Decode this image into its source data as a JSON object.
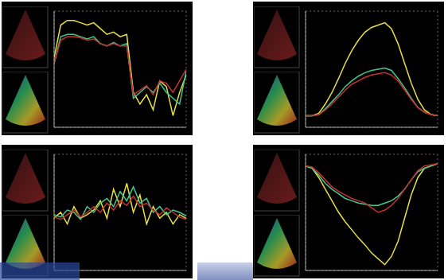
{
  "chart_data": [
    {
      "type": "line",
      "x": [
        0,
        1,
        2,
        3,
        4,
        5,
        6,
        7,
        8,
        9,
        10,
        11,
        12,
        13,
        14,
        15,
        16,
        17,
        18,
        19,
        20
      ],
      "xlim": [
        0,
        20
      ],
      "xticks": [
        0,
        4,
        8,
        12,
        16,
        20
      ],
      "ylim": [
        0,
        100
      ],
      "yticks": [
        0,
        20,
        40,
        60,
        80,
        100
      ],
      "grid": true,
      "tick_labels": false,
      "series": [
        {
          "color": "#e8e040",
          "values": [
            60,
            88,
            92,
            92,
            90,
            88,
            90,
            85,
            80,
            82,
            78,
            80,
            30,
            20,
            28,
            15,
            40,
            35,
            10,
            30,
            45
          ]
        },
        {
          "color": "#40c890",
          "values": [
            55,
            78,
            80,
            80,
            78,
            76,
            78,
            72,
            70,
            73,
            70,
            72,
            25,
            30,
            35,
            30,
            38,
            30,
            25,
            20,
            48
          ]
        },
        {
          "color": "#c83030",
          "values": [
            55,
            75,
            78,
            78,
            77,
            75,
            76,
            72,
            70,
            72,
            70,
            70,
            28,
            32,
            36,
            28,
            40,
            38,
            30,
            40,
            50
          ]
        }
      ]
    },
    {
      "type": "line",
      "x": [
        0,
        1,
        2,
        3,
        4,
        5,
        6,
        7,
        8,
        9,
        10,
        11,
        12,
        13,
        14,
        15,
        16,
        17,
        18,
        19,
        20
      ],
      "xlim": [
        0,
        20
      ],
      "xticks": [
        0,
        4,
        8,
        12,
        16,
        20
      ],
      "ylim": [
        0,
        100
      ],
      "yticks": [
        0,
        20,
        40,
        60,
        80,
        100
      ],
      "grid": true,
      "tick_labels": false,
      "series": [
        {
          "color": "#e8e040",
          "values": [
            10,
            10,
            12,
            20,
            30,
            42,
            55,
            66,
            75,
            82,
            86,
            88,
            90,
            85,
            72,
            55,
            38,
            24,
            15,
            11,
            10
          ]
        },
        {
          "color": "#40c890",
          "values": [
            10,
            10,
            11,
            16,
            22,
            28,
            35,
            40,
            44,
            47,
            49,
            50,
            51,
            49,
            42,
            34,
            25,
            17,
            13,
            11,
            10
          ]
        },
        {
          "color": "#c83030",
          "values": [
            10,
            10,
            11,
            15,
            20,
            26,
            32,
            37,
            40,
            43,
            45,
            46,
            47,
            45,
            40,
            32,
            24,
            17,
            13,
            11,
            10
          ]
        }
      ]
    },
    {
      "type": "line",
      "x": [
        0,
        1,
        2,
        3,
        4,
        5,
        6,
        7,
        8,
        9,
        10,
        11,
        12,
        13,
        14,
        15,
        16,
        17,
        18,
        19,
        20
      ],
      "xlim": [
        0,
        20
      ],
      "xticks": [
        0,
        4,
        8,
        12,
        16,
        20
      ],
      "ylim": [
        0,
        100
      ],
      "yticks": [
        0,
        20,
        40,
        60,
        80,
        100
      ],
      "grid": true,
      "tick_labels": false,
      "series": [
        {
          "color": "#e8e040",
          "values": [
            45,
            50,
            40,
            55,
            45,
            48,
            52,
            60,
            45,
            70,
            55,
            75,
            50,
            65,
            40,
            55,
            45,
            50,
            40,
            48,
            45
          ]
        },
        {
          "color": "#40c890",
          "values": [
            48,
            46,
            52,
            50,
            44,
            55,
            50,
            58,
            62,
            55,
            68,
            60,
            72,
            58,
            62,
            50,
            55,
            48,
            52,
            50,
            47
          ]
        },
        {
          "color": "#c83030",
          "values": [
            46,
            44,
            48,
            52,
            46,
            50,
            55,
            50,
            58,
            52,
            60,
            56,
            64,
            55,
            58,
            52,
            48,
            54,
            50,
            46,
            44
          ]
        }
      ]
    },
    {
      "type": "line",
      "x": [
        0,
        1,
        2,
        3,
        4,
        5,
        6,
        7,
        8,
        9,
        10,
        11,
        12,
        13,
        14,
        15,
        16,
        17,
        18,
        19,
        20
      ],
      "xlim": [
        0,
        20
      ],
      "xticks": [
        0,
        4,
        8,
        12,
        16,
        20
      ],
      "ylim": [
        0,
        100
      ],
      "yticks": [
        0,
        20,
        40,
        60,
        80,
        100
      ],
      "grid": true,
      "tick_labels": false,
      "series": [
        {
          "color": "#e8e040",
          "values": [
            90,
            88,
            80,
            70,
            60,
            50,
            42,
            35,
            28,
            22,
            15,
            10,
            5,
            12,
            25,
            45,
            65,
            80,
            88,
            90,
            92
          ]
        },
        {
          "color": "#40c890",
          "values": [
            90,
            88,
            82,
            75,
            70,
            66,
            62,
            60,
            58,
            57,
            56,
            56,
            58,
            60,
            64,
            70,
            78,
            85,
            88,
            90,
            92
          ]
        },
        {
          "color": "#c83030",
          "values": [
            90,
            89,
            84,
            78,
            72,
            68,
            65,
            62,
            60,
            58,
            54,
            50,
            52,
            56,
            62,
            70,
            78,
            86,
            90,
            91,
            92
          ]
        }
      ]
    }
  ]
}
